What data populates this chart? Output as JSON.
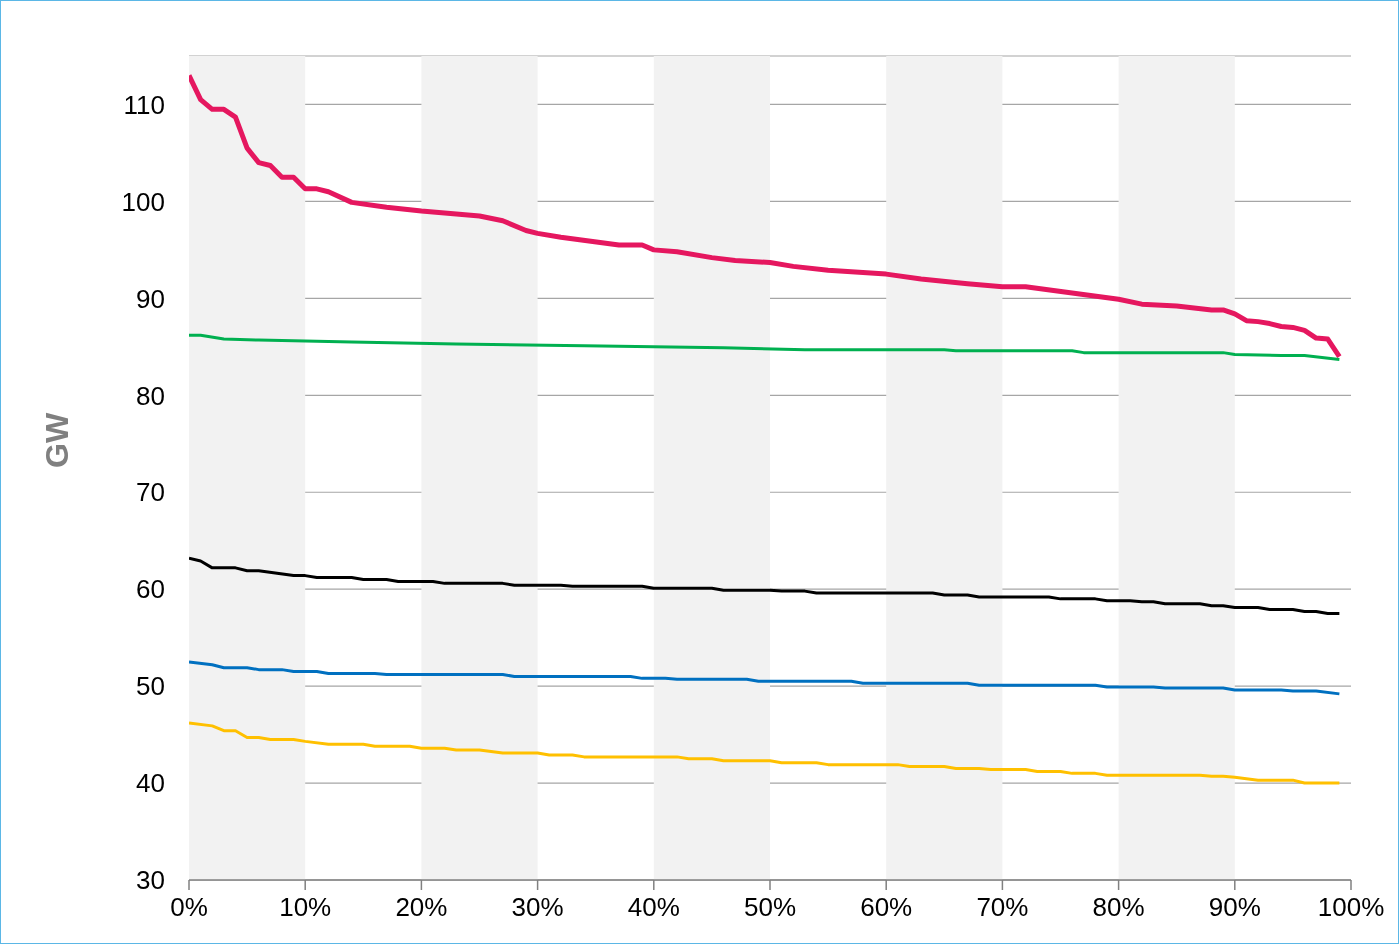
{
  "chart_data": {
    "type": "line",
    "ylabel": "GW",
    "xlim": [
      0,
      100
    ],
    "xticks": [
      {
        "value": 0,
        "label": "0%"
      },
      {
        "value": 10,
        "label": "10%"
      },
      {
        "value": 20,
        "label": "20%"
      },
      {
        "value": 30,
        "label": "30%"
      },
      {
        "value": 40,
        "label": "40%"
      },
      {
        "value": 50,
        "label": "50%"
      },
      {
        "value": 60,
        "label": "60%"
      },
      {
        "value": 70,
        "label": "70%"
      },
      {
        "value": 80,
        "label": "80%"
      },
      {
        "value": 90,
        "label": "90%"
      },
      {
        "value": 100,
        "label": "100%"
      }
    ],
    "ylim": [
      30,
      115
    ],
    "yticks": [
      30,
      40,
      50,
      60,
      70,
      80,
      90,
      100,
      110
    ],
    "grid": "y",
    "legend": false,
    "marker": "none",
    "line_style": "solid",
    "bands": [
      {
        "axis": "x",
        "from": 0,
        "to": 10,
        "color": "#f2f2f2"
      },
      {
        "axis": "x",
        "from": 20,
        "to": 30,
        "color": "#f2f2f2"
      },
      {
        "axis": "x",
        "from": 40,
        "to": 50,
        "color": "#f2f2f2"
      },
      {
        "axis": "x",
        "from": 60,
        "to": 70,
        "color": "#f2f2f2"
      },
      {
        "axis": "x",
        "from": 80,
        "to": 90,
        "color": "#f2f2f2"
      }
    ],
    "series": [
      {
        "color": "#e5175f",
        "x": [
          0,
          1,
          2,
          3,
          4,
          5,
          6,
          7,
          8,
          9,
          10,
          11,
          12,
          14,
          17,
          20,
          23,
          25,
          27,
          29,
          30,
          32,
          37,
          39,
          40,
          42,
          45,
          47,
          50,
          52,
          55,
          60,
          63,
          67,
          70,
          72,
          80,
          82,
          85,
          88,
          89,
          90,
          91,
          92,
          93,
          94,
          95,
          96,
          97,
          98,
          99
        ],
        "values": [
          113,
          110.5,
          109.5,
          109.5,
          108.7,
          105.5,
          104,
          103.7,
          102.5,
          102.5,
          101.3,
          101.3,
          101,
          99.9,
          99.4,
          99,
          98.7,
          98.5,
          98,
          97,
          96.7,
          96.3,
          95.5,
          95.5,
          95,
          94.8,
          94.2,
          93.9,
          93.7,
          93.3,
          92.9,
          92.5,
          92,
          91.5,
          91.2,
          91.2,
          89.9,
          89.4,
          89.2,
          88.8,
          88.8,
          88.4,
          87.7,
          87.6,
          87.4,
          87.1,
          87,
          86.7,
          85.9,
          85.8,
          84
        ]
      },
      {
        "color": "#00b050",
        "x": [
          0,
          1,
          3,
          6,
          14,
          23,
          34,
          46,
          53,
          65,
          66,
          76,
          77,
          89,
          90,
          94,
          96,
          99
        ],
        "values": [
          86.2,
          86.2,
          85.8,
          85.7,
          85.5,
          85.3,
          85.1,
          84.9,
          84.7,
          84.7,
          84.6,
          84.6,
          84.4,
          84.4,
          84.2,
          84.1,
          84.1,
          83.7
        ]
      },
      {
        "color": "#000000",
        "x": [
          0,
          1,
          2,
          4,
          5,
          6,
          9,
          10,
          11,
          14,
          15,
          17,
          18,
          21,
          22,
          27,
          28,
          32,
          33,
          39,
          40,
          45,
          46,
          50,
          51,
          53,
          54,
          64,
          65,
          67,
          68,
          74,
          75,
          78,
          79,
          81,
          82,
          83,
          84,
          87,
          88,
          89,
          90,
          92,
          93,
          95,
          96,
          97,
          98,
          99
        ],
        "values": [
          63.2,
          62.9,
          62.2,
          62.2,
          61.9,
          61.9,
          61.4,
          61.4,
          61.2,
          61.2,
          61,
          61,
          60.8,
          60.8,
          60.6,
          60.6,
          60.4,
          60.4,
          60.3,
          60.3,
          60.1,
          60.1,
          59.9,
          59.9,
          59.8,
          59.8,
          59.6,
          59.6,
          59.4,
          59.4,
          59.2,
          59.2,
          59,
          59,
          58.8,
          58.8,
          58.7,
          58.7,
          58.5,
          58.5,
          58.3,
          58.3,
          58.1,
          58.1,
          57.9,
          57.9,
          57.7,
          57.7,
          57.5,
          57.5
        ]
      },
      {
        "color": "#0070c0",
        "x": [
          0,
          2,
          3,
          5,
          6,
          8,
          9,
          11,
          12,
          16,
          17,
          27,
          28,
          38,
          39,
          41,
          42,
          48,
          49,
          57,
          58,
          67,
          68,
          78,
          79,
          83,
          84,
          89,
          90,
          94,
          95,
          97,
          99
        ],
        "values": [
          52.5,
          52.2,
          51.9,
          51.9,
          51.7,
          51.7,
          51.5,
          51.5,
          51.3,
          51.3,
          51.2,
          51.2,
          51,
          51,
          50.8,
          50.8,
          50.7,
          50.7,
          50.5,
          50.5,
          50.3,
          50.3,
          50.1,
          50.1,
          49.9,
          49.9,
          49.8,
          49.8,
          49.6,
          49.6,
          49.5,
          49.5,
          49.2
        ]
      },
      {
        "color": "#ffc000",
        "x": [
          0,
          2,
          3,
          4,
          5,
          6,
          7,
          9,
          10,
          12,
          15,
          16,
          19,
          20,
          22,
          23,
          25,
          27,
          30,
          31,
          33,
          34,
          42,
          43,
          45,
          46,
          50,
          51,
          54,
          55,
          61,
          62,
          65,
          66,
          68,
          69,
          72,
          73,
          75,
          76,
          78,
          79,
          84,
          85,
          87,
          88,
          89,
          90,
          92,
          95,
          96,
          99
        ],
        "values": [
          46.2,
          45.9,
          45.4,
          45.4,
          44.7,
          44.7,
          44.5,
          44.5,
          44.3,
          44,
          44,
          43.8,
          43.8,
          43.6,
          43.6,
          43.4,
          43.4,
          43.1,
          43.1,
          42.9,
          42.9,
          42.7,
          42.7,
          42.5,
          42.5,
          42.3,
          42.3,
          42.1,
          42.1,
          41.9,
          41.9,
          41.7,
          41.7,
          41.5,
          41.5,
          41.4,
          41.4,
          41.2,
          41.2,
          41,
          41,
          40.8,
          40.8,
          40.8,
          40.8,
          40.7,
          40.7,
          40.6,
          40.3,
          40.3,
          40,
          40
        ]
      }
    ]
  }
}
